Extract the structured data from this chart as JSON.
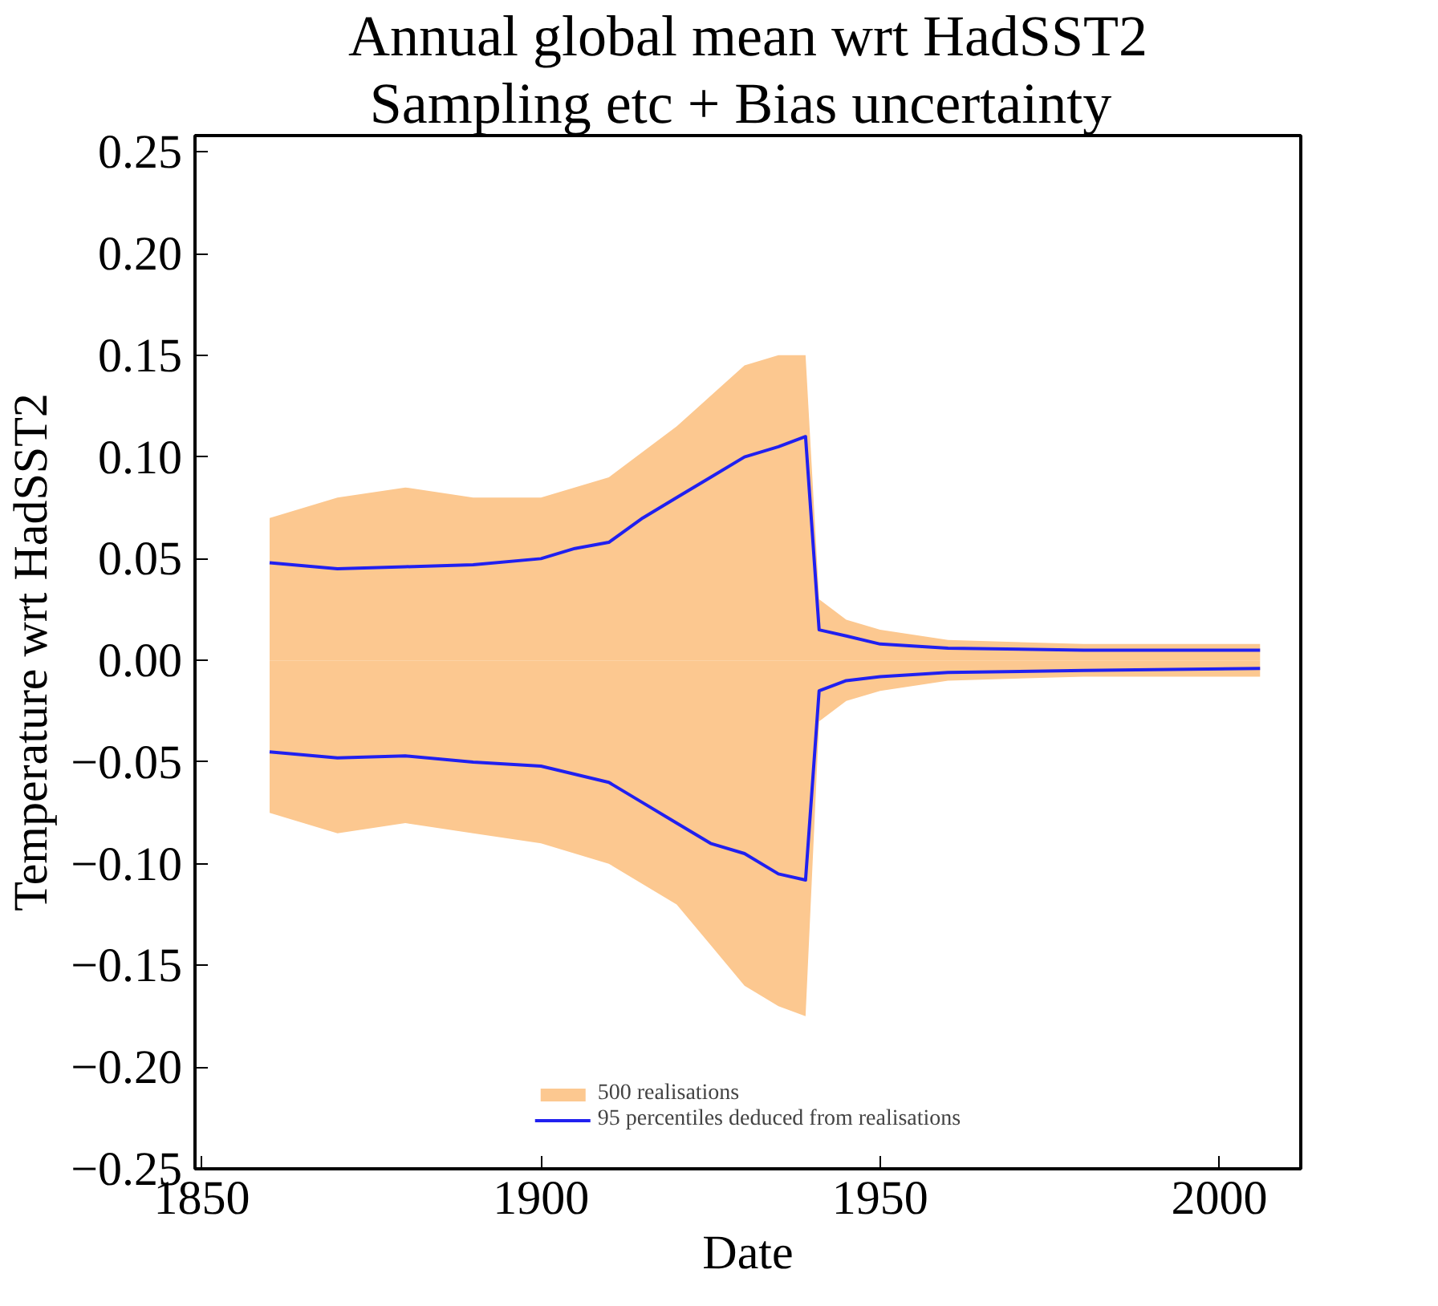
{
  "chart_data": {
    "type": "line",
    "title": "Annual global mean wrt HadSST2",
    "subtitle": "Sampling etc + Bias  uncertainty",
    "xlabel": "Date",
    "ylabel": "Temperature wrt HadSST2",
    "xlim": [
      1849,
      2012
    ],
    "ylim": [
      -0.25,
      0.258
    ],
    "xticks": [
      1850,
      1900,
      1950,
      2000
    ],
    "yticks": [
      {
        "value": -0.25,
        "label": "−0.25"
      },
      {
        "value": -0.2,
        "label": "−0.20"
      },
      {
        "value": -0.15,
        "label": "−0.15"
      },
      {
        "value": -0.1,
        "label": "−0.10"
      },
      {
        "value": -0.05,
        "label": "−0.05"
      },
      {
        "value": 0,
        "label": "0.00"
      },
      {
        "value": 0.05,
        "label": "0.05"
      },
      {
        "value": 0.1,
        "label": "0.10"
      },
      {
        "value": 0.15,
        "label": "0.15"
      },
      {
        "value": 0.2,
        "label": "0.20"
      },
      {
        "value": 0.25,
        "label": "0.25"
      }
    ],
    "grid": false,
    "legend": "bottom",
    "line_style": "solid",
    "marker": "none",
    "series": [
      {
        "name": "500 realisations",
        "type": "area",
        "color": "#fcc890",
        "x": [
          1860,
          1870,
          1880,
          1890,
          1900,
          1910,
          1920,
          1925,
          1930,
          1935,
          1939,
          1941,
          1945,
          1950,
          1960,
          1980,
          2006
        ],
        "values": [
          0.07,
          0.08,
          0.085,
          0.08,
          0.08,
          0.09,
          0.115,
          0.13,
          0.145,
          0.15,
          0.15,
          0.03,
          0.02,
          0.015,
          0.01,
          0.008,
          0.008
        ]
      },
      {
        "type": "area",
        "color": "#fcc890",
        "x": [
          1860,
          1870,
          1880,
          1890,
          1900,
          1910,
          1920,
          1925,
          1930,
          1935,
          1939,
          1941,
          1945,
          1950,
          1960,
          1980,
          2006
        ],
        "values": [
          -0.075,
          -0.085,
          -0.08,
          -0.085,
          -0.09,
          -0.1,
          -0.12,
          -0.14,
          -0.16,
          -0.17,
          -0.175,
          -0.03,
          -0.02,
          -0.015,
          -0.01,
          -0.008,
          -0.008
        ]
      },
      {
        "name": "95 percentiles deduced from realisations",
        "color": "#2020f0",
        "x": [
          1860,
          1870,
          1880,
          1890,
          1900,
          1905,
          1910,
          1915,
          1920,
          1925,
          1930,
          1935,
          1939,
          1941,
          1945,
          1950,
          1960,
          1980,
          2006
        ],
        "values": [
          0.048,
          0.045,
          0.046,
          0.047,
          0.05,
          0.055,
          0.058,
          0.07,
          0.08,
          0.09,
          0.1,
          0.105,
          0.11,
          0.015,
          0.012,
          0.008,
          0.006,
          0.005,
          0.005
        ]
      },
      {
        "color": "#2020f0",
        "x": [
          1860,
          1870,
          1880,
          1890,
          1900,
          1910,
          1915,
          1920,
          1925,
          1930,
          1935,
          1939,
          1941,
          1945,
          1950,
          1960,
          1980,
          2006
        ],
        "values": [
          -0.045,
          -0.048,
          -0.047,
          -0.05,
          -0.052,
          -0.06,
          -0.07,
          -0.08,
          -0.09,
          -0.095,
          -0.105,
          -0.108,
          -0.015,
          -0.01,
          -0.008,
          -0.006,
          -0.005,
          -0.004
        ]
      }
    ]
  }
}
